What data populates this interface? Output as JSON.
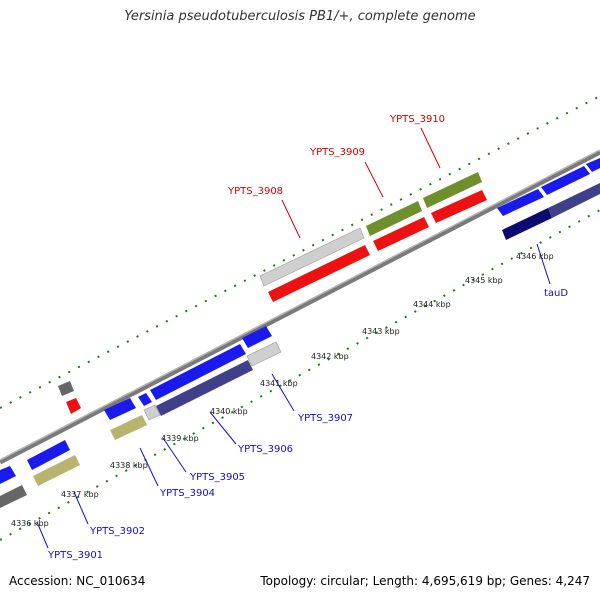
{
  "title": "Yersinia pseudotuberculosis PB1/+, complete genome",
  "footer": {
    "accession": "Accession: NC_010634",
    "topology": "Topology: circular; Length: 4,695,619 bp; Genes: 4,247"
  },
  "colors": {
    "backbone": "#7a7a7a",
    "tick_green": "#1e7a1e",
    "blue": "#1a1aee",
    "dark_blue": "#40408a",
    "navy": "#0a0a70",
    "red": "#ee1111",
    "olive": "#6f8e2c",
    "khaki": "#b9b46d",
    "light_grey": "#cfcfcf",
    "dark_grey": "#666666"
  },
  "kbp_labels": [
    "4336 kbp",
    "4337 kbp",
    "4338 kbp",
    "4339 kbp",
    "4340 kbp",
    "4341 kbp",
    "4342 kbp",
    "4343 kbp",
    "4344 kbp",
    "4345 kbp",
    "4346 kbp"
  ],
  "gene_labels_top": [
    "YPTS_3908",
    "YPTS_3909",
    "YPTS_3910"
  ],
  "gene_labels_bottom": [
    "YPTS_3901",
    "YPTS_3902",
    "YPTS_3904",
    "YPTS_3905",
    "YPTS_3906",
    "YPTS_3907",
    "tauD"
  ]
}
